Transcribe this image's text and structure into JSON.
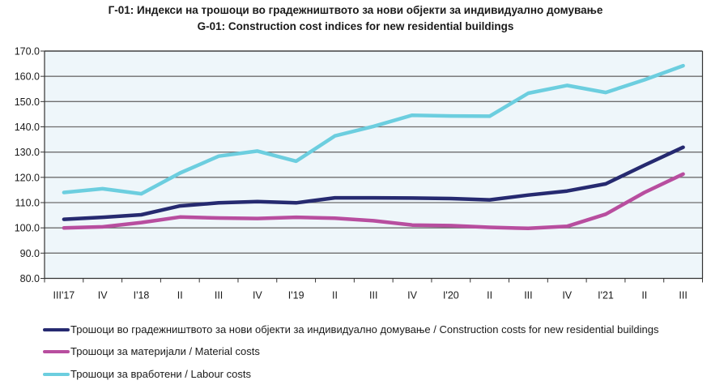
{
  "chart_data": {
    "type": "line",
    "title": "Г-01: Индекси на трошоци во градежништвото за нови објекти за индивидуално домување",
    "subtitle": "G-01: Construction cost indices for new residential buildings",
    "xlabel": "",
    "ylabel": "",
    "ylim": [
      80.0,
      170.0
    ],
    "yticks": [
      "80.0",
      "90.0",
      "100.0",
      "110.0",
      "120.0",
      "130.0",
      "140.0",
      "150.0",
      "160.0",
      "170.0"
    ],
    "grid": true,
    "legend_position": "bottom-left",
    "categories": [
      "III'17",
      "IV",
      "I'18",
      "II",
      "III",
      "IV",
      "I'19",
      "II",
      "III",
      "IV",
      "I'20",
      "II",
      "III",
      "IV",
      "I'21",
      "II",
      "III"
    ],
    "series": [
      {
        "name": "Трошоци во градежништвото за нови објекти за индивидуално домување / Construction costs for new residential buildings",
        "color": "#262a70",
        "values": [
          103.4,
          104.2,
          105.2,
          108.7,
          109.9,
          110.4,
          109.9,
          111.9,
          111.9,
          111.8,
          111.6,
          111.1,
          113.0,
          114.6,
          117.4,
          124.8,
          131.9
        ]
      },
      {
        "name": "Трошоци за материјали / Material costs",
        "color": "#b84e9f",
        "values": [
          100.0,
          100.4,
          102.1,
          104.3,
          103.9,
          103.7,
          104.2,
          103.8,
          102.8,
          101.1,
          100.9,
          100.2,
          99.8,
          100.6,
          105.4,
          114.0,
          121.3
        ]
      },
      {
        "name": "Трошоци за вработени / Labour costs",
        "color": "#6ccedf",
        "values": [
          114.0,
          115.5,
          113.5,
          121.7,
          128.4,
          130.4,
          126.4,
          136.4,
          140.2,
          144.6,
          144.3,
          144.2,
          153.3,
          156.4,
          153.6,
          158.6,
          164.2
        ]
      }
    ]
  }
}
